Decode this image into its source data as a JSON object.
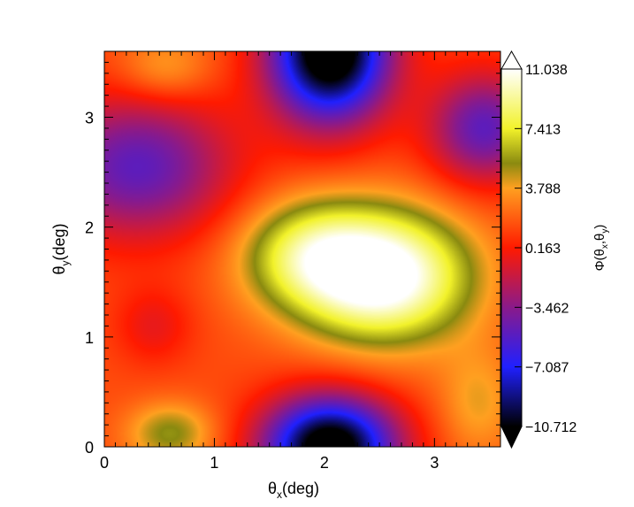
{
  "chart_data": {
    "type": "heatmap",
    "title": "",
    "xlabel": {
      "base": "θ",
      "sub": "x",
      "rest": "(deg)"
    },
    "ylabel": {
      "base": "θ",
      "sub": "y",
      "rest": "(deg)"
    },
    "colorbar_label": {
      "pre": "Φ(θ",
      "sub1": "x",
      "mid": ",θ",
      "sub2": "y",
      "post": ")"
    },
    "xlim": [
      0,
      3.6
    ],
    "ylim": [
      0,
      3.6
    ],
    "x_ticks": [
      0,
      1,
      2,
      3
    ],
    "y_ticks": [
      0,
      1,
      2,
      3
    ],
    "x_tick_labels": [
      "0",
      "1",
      "2",
      "3"
    ],
    "y_tick_labels": [
      "0",
      "1",
      "2",
      "3"
    ],
    "colorbar_ticks": [
      "11.038",
      "7.413",
      "3.788",
      "0.163",
      "−3.462",
      "−7.087",
      "−10.712"
    ],
    "zlim": [
      -10.712,
      11.038
    ],
    "colormap": [
      {
        "value": -10.712,
        "color": "#000000"
      },
      {
        "value": -7.087,
        "color": "#2020ff"
      },
      {
        "value": -3.462,
        "color": "#8a1a8a"
      },
      {
        "value": 0.163,
        "color": "#ff1a00"
      },
      {
        "value": 3.788,
        "color": "#ffa020"
      },
      {
        "value": 5.3,
        "color": "#8a8a10"
      },
      {
        "value": 7.413,
        "color": "#f2f22a"
      },
      {
        "value": 11.038,
        "color": "#ffffff"
      }
    ],
    "features": [
      {
        "kind": "peak",
        "x": 2.6,
        "y": 1.6,
        "value": 11.0
      },
      {
        "kind": "ridge",
        "x": 1.8,
        "y": 1.75,
        "value": 8.5
      },
      {
        "kind": "valley",
        "x": 2.0,
        "y": 3.5,
        "value": -10.7
      },
      {
        "kind": "valley",
        "x": 2.0,
        "y": 0.05,
        "value": -10.7
      },
      {
        "kind": "valley",
        "x": 0.4,
        "y": 2.6,
        "value": -4.0
      },
      {
        "kind": "valley",
        "x": 3.4,
        "y": 2.9,
        "value": -4.0
      },
      {
        "kind": "local-max",
        "x": 0.5,
        "y": 3.4,
        "value": 3.0
      },
      {
        "kind": "local-max",
        "x": 0.6,
        "y": 0.15,
        "value": 5.0
      }
    ]
  }
}
